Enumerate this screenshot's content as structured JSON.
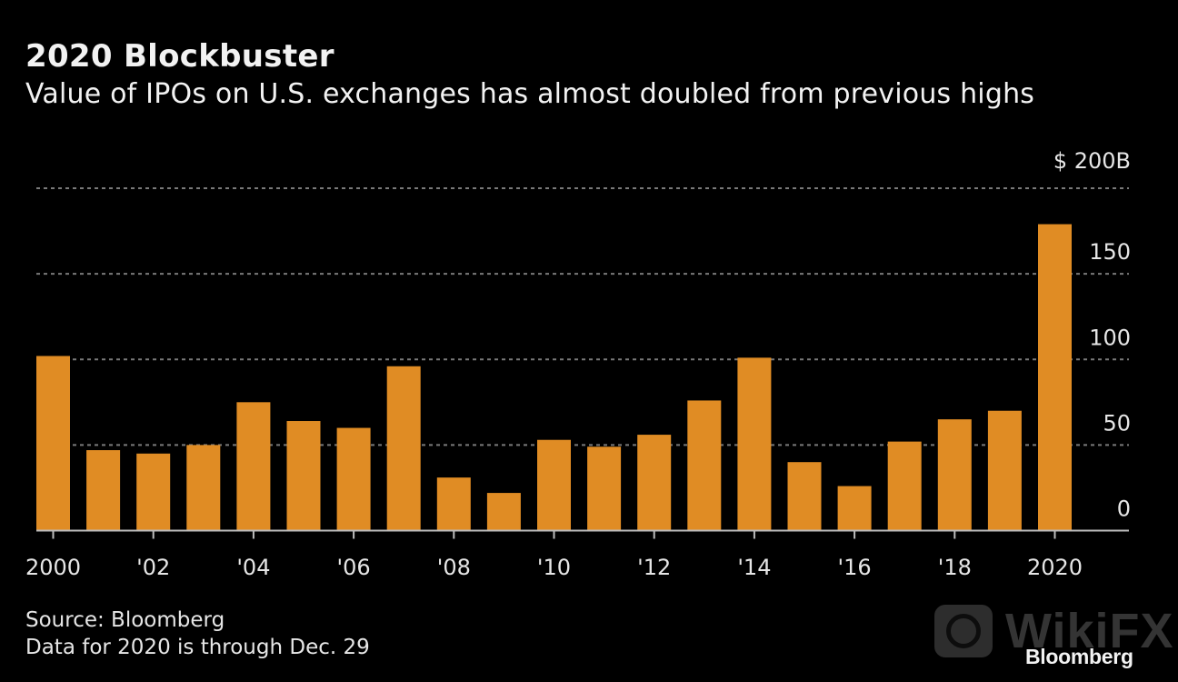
{
  "header": {
    "title": "2020 Blockbuster",
    "subtitle": "Value of IPOs on U.S. exchanges has almost doubled from previous highs"
  },
  "footer": {
    "source": "Source: Bloomberg",
    "note": "Data for 2020 is through Dec. 29",
    "brand": "Bloomberg"
  },
  "watermark": {
    "text": "WikiFX",
    "icon": "eagle-logo-icon"
  },
  "colors": {
    "bar": "#E08C24",
    "background": "#000000",
    "gridline": "#7a7a7a",
    "axis": "#bdbdbd",
    "text": "#e6e6e6"
  },
  "chart_data": {
    "type": "bar",
    "title": "2020 Blockbuster",
    "subtitle": "Value of IPOs on U.S. exchanges has almost doubled from previous highs",
    "xlabel": "",
    "ylabel": "",
    "categories": [
      "2000",
      "2001",
      "2002",
      "2003",
      "2004",
      "2005",
      "2006",
      "2007",
      "2008",
      "2009",
      "2010",
      "2011",
      "2012",
      "2013",
      "2014",
      "2015",
      "2016",
      "2017",
      "2018",
      "2019",
      "2020"
    ],
    "values": [
      102,
      47,
      45,
      50,
      75,
      64,
      60,
      96,
      31,
      22,
      53,
      49,
      56,
      76,
      101,
      40,
      26,
      52,
      65,
      70,
      179
    ],
    "units": "$ billions",
    "ylim": [
      0,
      200
    ],
    "yticks": [
      0,
      50,
      100,
      150,
      200
    ],
    "ytick_labels": [
      "0",
      "50",
      "100",
      "150",
      "$ 200B"
    ],
    "xtick_labels": [
      {
        "index": 0,
        "label": "2000"
      },
      {
        "index": 2,
        "label": "'02"
      },
      {
        "index": 4,
        "label": "'04"
      },
      {
        "index": 6,
        "label": "'06"
      },
      {
        "index": 8,
        "label": "'08"
      },
      {
        "index": 10,
        "label": "'10"
      },
      {
        "index": 12,
        "label": "'12"
      },
      {
        "index": 14,
        "label": "'14"
      },
      {
        "index": 16,
        "label": "'16"
      },
      {
        "index": 18,
        "label": "'18"
      },
      {
        "index": 20,
        "label": "2020"
      }
    ],
    "grid": true,
    "grid_style": "dotted",
    "yaxis_position": "right",
    "legend": "none"
  }
}
